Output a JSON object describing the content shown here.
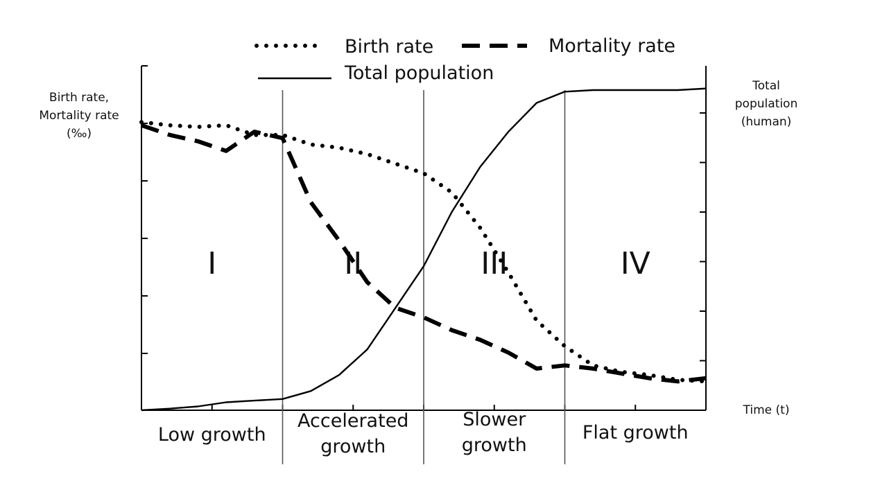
{
  "chart_data": {
    "type": "line",
    "xlabel": "Time (t)",
    "ylabel_left": "Birth rate,\nMortality rate\n(‰)",
    "ylabel_right": "Total\npopulation\n(human)",
    "legend_position": "top",
    "stages": [
      {
        "numeral": "I",
        "label": "Low growth"
      },
      {
        "numeral": "II",
        "label": "Accelerated\ngrowth"
      },
      {
        "numeral": "III",
        "label": "Slower\ngrowth"
      },
      {
        "numeral": "IV",
        "label": "Flat growth"
      }
    ],
    "x": [
      0,
      2,
      4,
      6,
      8,
      10,
      12,
      14,
      16,
      18,
      20,
      22,
      24,
      26,
      28,
      30,
      32,
      34,
      36,
      38,
      40
    ],
    "x_range": [
      0,
      40
    ],
    "stage_boundaries": [
      10,
      20,
      30
    ],
    "y_range": [
      0,
      100
    ],
    "series": [
      {
        "name": "Birth rate",
        "style": "dotted",
        "values": [
          90,
          89,
          88.5,
          89,
          86,
          86,
          83,
          82,
          80,
          77,
          74,
          68,
          57,
          43,
          28,
          20,
          14,
          12,
          11,
          9.5,
          9
        ]
      },
      {
        "name": "Mortality rate",
        "style": "dashed",
        "values": [
          89,
          86,
          84,
          81,
          87,
          85,
          65,
          53,
          40,
          32,
          29,
          25,
          22,
          18,
          13,
          14,
          13,
          11.5,
          10,
          9,
          10
        ]
      },
      {
        "name": "Total population",
        "style": "solid",
        "values": [
          0,
          0.5,
          1.2,
          2.5,
          3,
          3.5,
          6,
          11,
          19,
          32,
          45,
          62,
          76,
          87,
          96,
          99.5,
          100,
          100,
          100,
          100,
          100.5
        ]
      }
    ],
    "colors": {
      "line": "#000000",
      "divider": "#555555"
    }
  }
}
